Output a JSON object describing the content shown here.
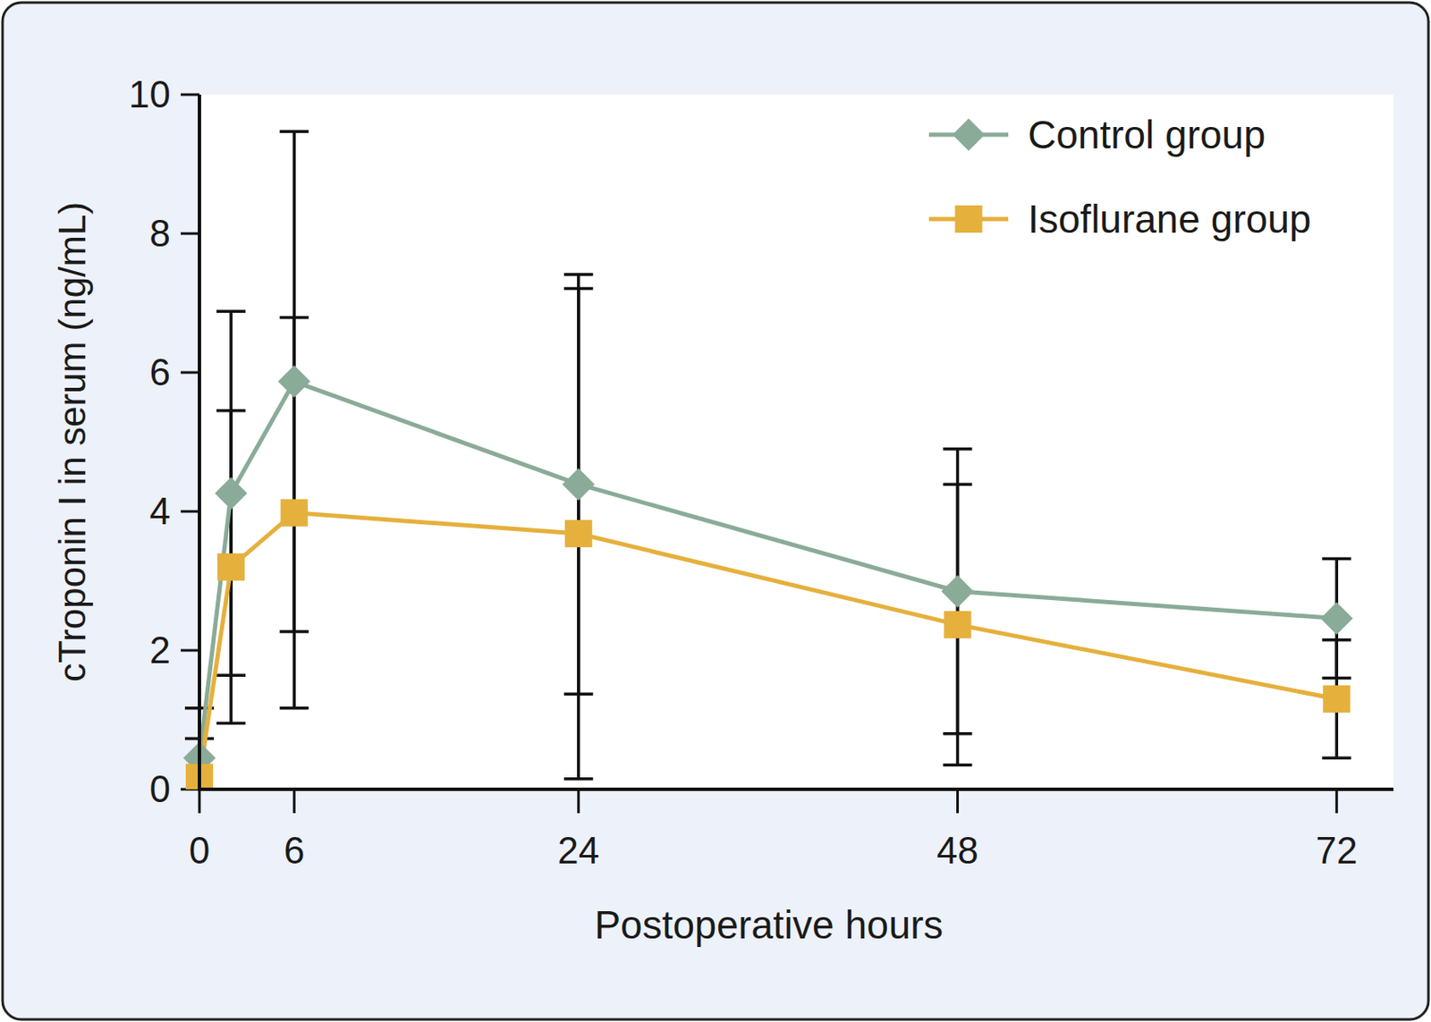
{
  "chart_data": {
    "type": "line",
    "x_label": "Postoperative hours",
    "y_label": "cTroponin I in serum (ng/mL)",
    "x": [
      0,
      2,
      6,
      24,
      48,
      72
    ],
    "series": [
      {
        "name": "Control group",
        "color": "#8aab98",
        "marker": "diamond",
        "values": [
          0.45,
          4.26,
          5.87,
          4.39,
          2.85,
          2.46
        ],
        "errors": [
          0.72,
          2.62,
          3.6,
          3.02,
          2.05,
          0.86
        ]
      },
      {
        "name": "Isoflurane group",
        "color": "#e5b03c",
        "marker": "square",
        "values": [
          0.17,
          3.2,
          3.98,
          3.68,
          2.37,
          1.3
        ],
        "errors": [
          0.56,
          2.25,
          2.81,
          3.53,
          2.02,
          0.85
        ]
      }
    ],
    "xlim": [
      0,
      75.6
    ],
    "xticks": [
      0,
      6,
      24,
      48,
      72
    ],
    "ylim": [
      0,
      10
    ],
    "yticks": [
      0,
      2,
      4,
      6,
      8,
      10
    ],
    "legend": "upper right",
    "grid": false
  }
}
